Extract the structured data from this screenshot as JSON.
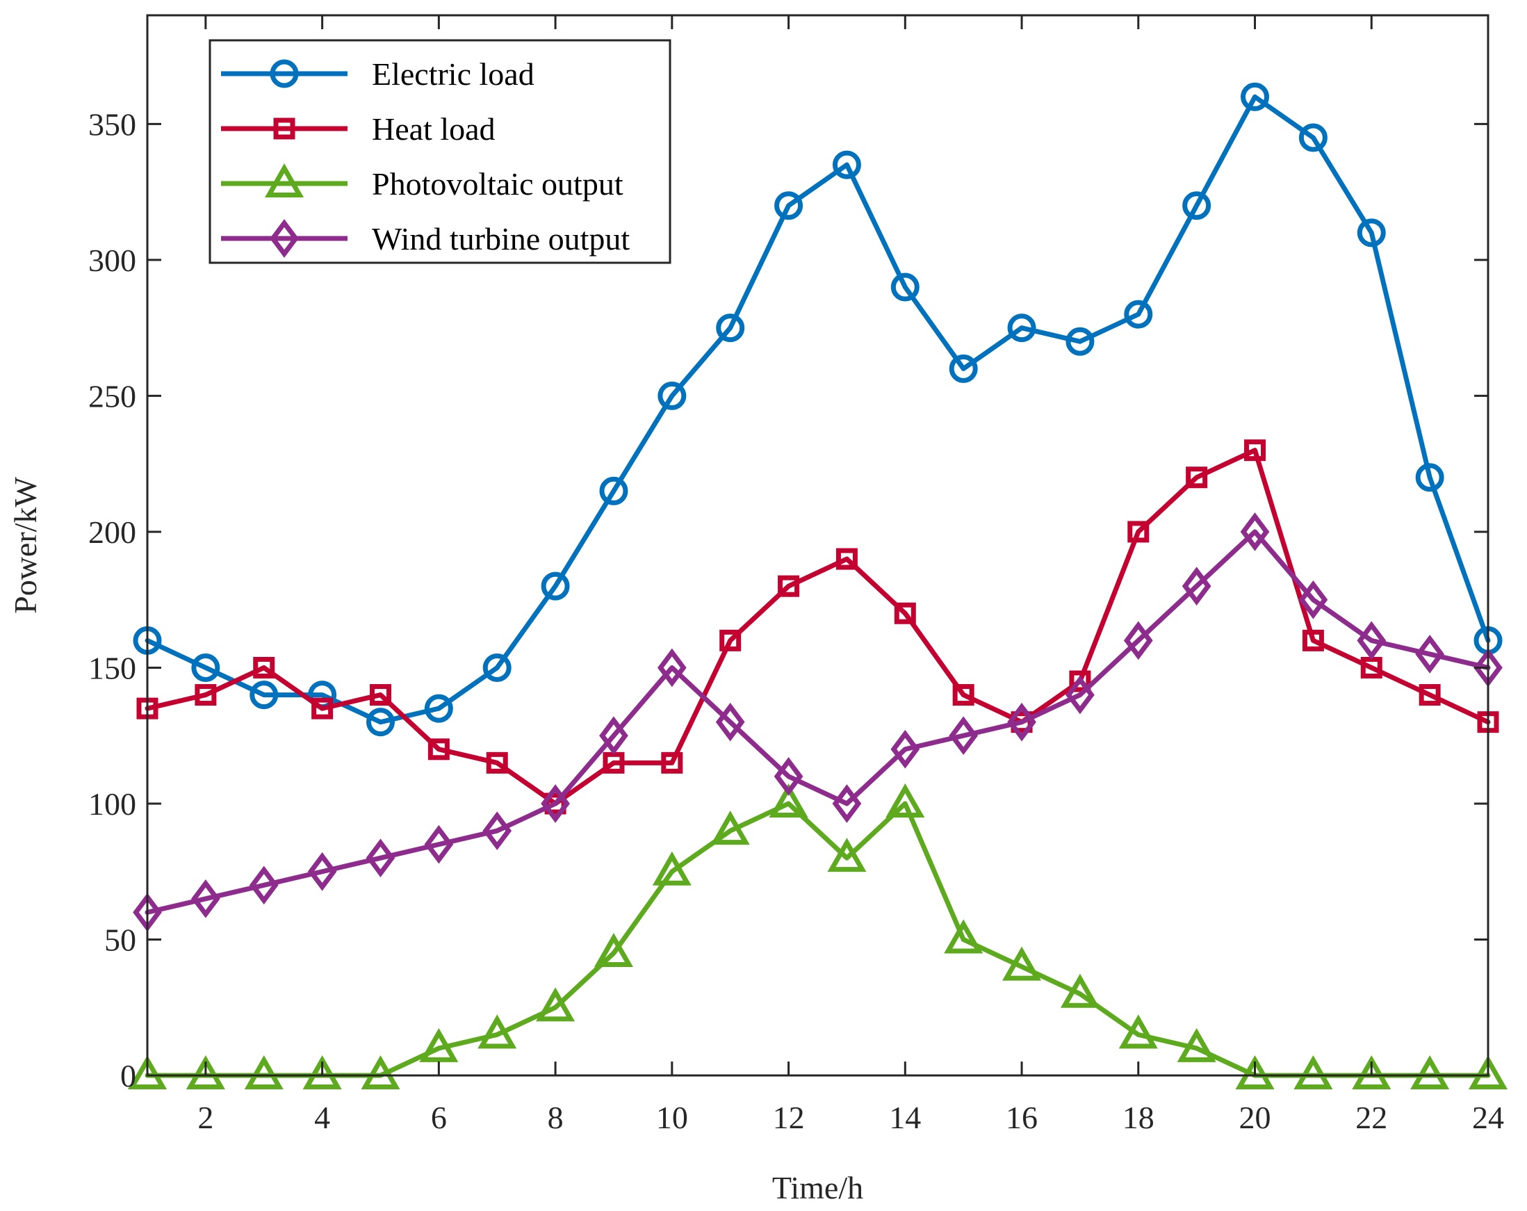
{
  "chart_data": {
    "type": "line",
    "title": "",
    "xlabel": "Time/h",
    "ylabel": "Power/kW",
    "xlim": [
      1,
      24
    ],
    "ylim": [
      0,
      390
    ],
    "xticks": [
      2,
      4,
      6,
      8,
      10,
      12,
      14,
      16,
      18,
      20,
      22,
      24
    ],
    "yticks": [
      0,
      50,
      100,
      150,
      200,
      250,
      300,
      350
    ],
    "grid": false,
    "legend_position": "top-left",
    "x": [
      1,
      2,
      3,
      4,
      5,
      6,
      7,
      8,
      9,
      10,
      11,
      12,
      13,
      14,
      15,
      16,
      17,
      18,
      19,
      20,
      21,
      22,
      23,
      24
    ],
    "series": [
      {
        "name": "Electric load",
        "color": "#0072BD",
        "marker": "circle",
        "values": [
          160,
          150,
          140,
          140,
          130,
          135,
          150,
          180,
          215,
          250,
          275,
          320,
          335,
          290,
          260,
          275,
          270,
          280,
          320,
          360,
          345,
          310,
          220,
          160
        ]
      },
      {
        "name": "Heat load",
        "color": "#C3002F",
        "marker": "square",
        "values": [
          135,
          140,
          150,
          135,
          140,
          120,
          115,
          100,
          115,
          115,
          160,
          180,
          190,
          170,
          140,
          130,
          145,
          200,
          220,
          230,
          160,
          150,
          140,
          130
        ]
      },
      {
        "name": "Photovoltaic output",
        "color": "#5DAA1E",
        "marker": "triangle",
        "values": [
          0,
          0,
          0,
          0,
          0,
          10,
          15,
          25,
          45,
          75,
          90,
          100,
          80,
          100,
          50,
          40,
          30,
          15,
          10,
          0,
          0,
          0,
          0,
          0
        ]
      },
      {
        "name": "Wind turbine output",
        "color": "#8E2C8E",
        "marker": "diamond",
        "values": [
          60,
          65,
          70,
          75,
          80,
          85,
          90,
          100,
          125,
          150,
          130,
          110,
          100,
          120,
          125,
          130,
          140,
          160,
          180,
          200,
          175,
          160,
          155,
          150
        ]
      }
    ]
  }
}
